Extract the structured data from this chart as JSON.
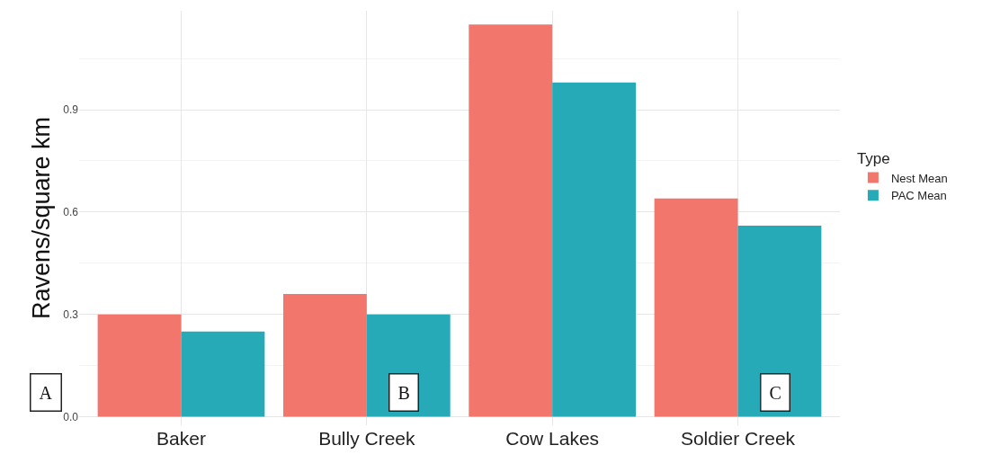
{
  "chart_data": {
    "type": "bar",
    "ylabel": "Ravens/square km",
    "legend_title": "Type",
    "categories": [
      "Baker",
      "Bully Creek",
      "Cow Lakes",
      "Soldier Creek"
    ],
    "series": [
      {
        "name": "Nest Mean",
        "color": "#f3766d",
        "values": [
          0.3,
          0.36,
          1.15,
          0.64
        ]
      },
      {
        "name": "PAC Mean",
        "color": "#27aab8",
        "values": [
          0.25,
          0.3,
          0.98,
          0.56
        ]
      }
    ],
    "ylim": [
      -0.025,
      1.19
    ],
    "yticks": [
      {
        "value": 0,
        "label": "0.0"
      },
      0.3,
      0.6,
      0.9
    ],
    "grid": true,
    "legend": "right",
    "annotations": [
      "A",
      "B",
      "C"
    ]
  }
}
